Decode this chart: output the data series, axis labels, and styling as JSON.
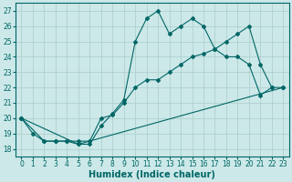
{
  "xlabel": "Humidex (Indice chaleur)",
  "bg_color": "#cce8e8",
  "grid_color": "#aacccc",
  "line_color": "#006666",
  "xlim": [
    -0.5,
    23.5
  ],
  "ylim": [
    17.5,
    27.5
  ],
  "xticks": [
    0,
    1,
    2,
    3,
    4,
    5,
    6,
    7,
    8,
    9,
    10,
    11,
    12,
    13,
    14,
    15,
    16,
    17,
    18,
    19,
    20,
    21,
    22,
    23
  ],
  "yticks": [
    18,
    19,
    20,
    21,
    22,
    23,
    24,
    25,
    26,
    27
  ],
  "series1_x": [
    0,
    1,
    2,
    3,
    4,
    5,
    6,
    7,
    8,
    9,
    10,
    11,
    12,
    13,
    14,
    15,
    16,
    17,
    18,
    19,
    20,
    21,
    22
  ],
  "series1_y": [
    20,
    19,
    18.5,
    18.5,
    18.5,
    18.3,
    18.3,
    19.5,
    20.3,
    21.2,
    25,
    26.5,
    27,
    25.5,
    26,
    26.5,
    26,
    24.5,
    24,
    24,
    23.5,
    21.5,
    22
  ],
  "series2_x": [
    0,
    2,
    3,
    4,
    5,
    6,
    7,
    8,
    9,
    10,
    11,
    12,
    13,
    14,
    15,
    16,
    17,
    18,
    19,
    20,
    21,
    22,
    23
  ],
  "series2_y": [
    20,
    18.5,
    18.5,
    18.5,
    18.5,
    18.5,
    20,
    20.2,
    21,
    22,
    22.5,
    22.5,
    23,
    23.5,
    24,
    24.2,
    24.5,
    25,
    25.5,
    26,
    23.5,
    22,
    22
  ],
  "series3_x": [
    0,
    5,
    23
  ],
  "series3_y": [
    20,
    18.3,
    22
  ],
  "font_size_label": 7,
  "font_size_tick": 5.5,
  "marker": "D",
  "marker_size": 2.0,
  "linewidth": 0.8
}
